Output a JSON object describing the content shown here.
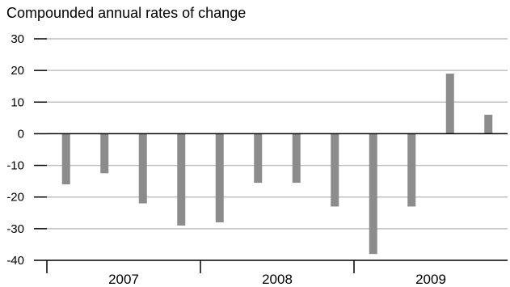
{
  "chart_data": {
    "type": "bar",
    "title": "Compounded annual rates of change",
    "xlabel": "",
    "ylabel": "",
    "ylim": [
      -40,
      30
    ],
    "yticks": [
      30,
      20,
      10,
      0,
      -10,
      -20,
      -30,
      -40
    ],
    "grid": true,
    "legend": "none",
    "groups": [
      {
        "label": "2007",
        "count": 4
      },
      {
        "label": "2008",
        "count": 4
      },
      {
        "label": "2009",
        "count": 4
      }
    ],
    "values": [
      -16,
      -12.5,
      -22,
      -29,
      -28,
      -15.5,
      -15.5,
      -23,
      -38,
      -23,
      19,
      6
    ],
    "colors": {
      "bar": "#8c8c8c",
      "grid": "#bfbfbf",
      "axis": "#000000"
    }
  }
}
